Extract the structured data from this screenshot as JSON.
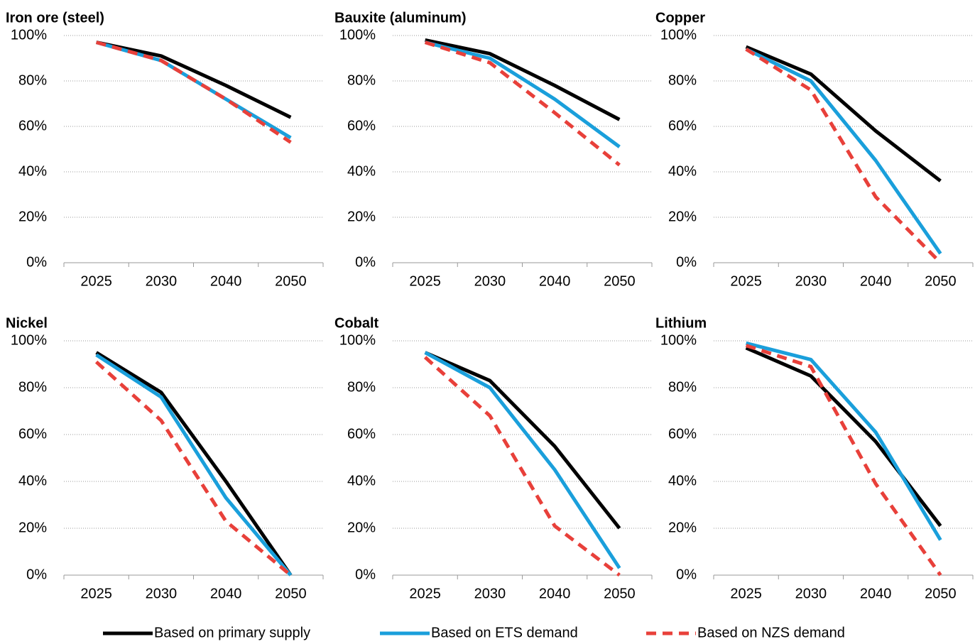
{
  "legend_series": [
    {
      "name": "Based on primary supply",
      "color": "#000000",
      "dash": false
    },
    {
      "name": "Based on ETS demand",
      "color": "#1a9fdb",
      "dash": false
    },
    {
      "name": "Based on NZS demand",
      "color": "#e8403a",
      "dash": true
    }
  ],
  "chart_data": [
    {
      "type": "line",
      "title": "Iron ore (steel)",
      "categories": [
        "2025",
        "2030",
        "2040",
        "2050"
      ],
      "series": [
        {
          "values": [
            97,
            91,
            78,
            64
          ]
        },
        {
          "values": [
            97,
            89,
            72,
            55
          ]
        },
        {
          "values": [
            97,
            89,
            72,
            53
          ]
        }
      ],
      "ylim": [
        0,
        100
      ],
      "yticks": [
        {
          "value": 0,
          "label": "0%"
        },
        {
          "value": 20,
          "label": "20%"
        },
        {
          "value": 40,
          "label": "40%"
        },
        {
          "value": 60,
          "label": "60%"
        },
        {
          "value": 80,
          "label": "80%"
        },
        {
          "value": 100,
          "label": "100%"
        }
      ],
      "grid": true
    },
    {
      "type": "line",
      "title": "Bauxite (aluminum)",
      "categories": [
        "2025",
        "2030",
        "2040",
        "2050"
      ],
      "series": [
        {
          "values": [
            98,
            92,
            78,
            63
          ]
        },
        {
          "values": [
            97,
            90,
            72,
            51
          ]
        },
        {
          "values": [
            97,
            88,
            66,
            43
          ]
        }
      ],
      "ylim": [
        0,
        100
      ],
      "yticks": [
        {
          "value": 0,
          "label": "0%"
        },
        {
          "value": 20,
          "label": "20%"
        },
        {
          "value": 40,
          "label": "40%"
        },
        {
          "value": 60,
          "label": "60%"
        },
        {
          "value": 80,
          "label": "80%"
        },
        {
          "value": 100,
          "label": "100%"
        }
      ],
      "grid": true
    },
    {
      "type": "line",
      "title": "Copper",
      "categories": [
        "2025",
        "2030",
        "2040",
        "2050"
      ],
      "series": [
        {
          "values": [
            95,
            83,
            58,
            36
          ]
        },
        {
          "values": [
            94,
            80,
            45,
            4
          ]
        },
        {
          "values": [
            94,
            76,
            29,
            0
          ]
        }
      ],
      "ylim": [
        0,
        100
      ],
      "yticks": [
        {
          "value": 0,
          "label": "0%"
        },
        {
          "value": 20,
          "label": "20%"
        },
        {
          "value": 40,
          "label": "40%"
        },
        {
          "value": 60,
          "label": "60%"
        },
        {
          "value": 80,
          "label": "80%"
        },
        {
          "value": 100,
          "label": "100%"
        }
      ],
      "grid": true
    },
    {
      "type": "line",
      "title": "Nickel",
      "categories": [
        "2025",
        "2030",
        "2040",
        "2050"
      ],
      "series": [
        {
          "values": [
            95,
            78,
            40,
            0
          ]
        },
        {
          "values": [
            94,
            76,
            33,
            0
          ]
        },
        {
          "values": [
            91,
            66,
            23,
            0
          ]
        }
      ],
      "ylim": [
        0,
        100
      ],
      "yticks": [
        {
          "value": 0,
          "label": "0%"
        },
        {
          "value": 20,
          "label": "20%"
        },
        {
          "value": 40,
          "label": "40%"
        },
        {
          "value": 60,
          "label": "60%"
        },
        {
          "value": 80,
          "label": "80%"
        },
        {
          "value": 100,
          "label": "100%"
        }
      ],
      "grid": true
    },
    {
      "type": "line",
      "title": "Cobalt",
      "categories": [
        "2025",
        "2030",
        "2040",
        "2050"
      ],
      "series": [
        {
          "values": [
            95,
            83,
            55,
            20
          ]
        },
        {
          "values": [
            95,
            80,
            45,
            3
          ]
        },
        {
          "values": [
            93,
            68,
            21,
            0
          ]
        }
      ],
      "ylim": [
        0,
        100
      ],
      "yticks": [
        {
          "value": 0,
          "label": "0%"
        },
        {
          "value": 20,
          "label": "20%"
        },
        {
          "value": 40,
          "label": "40%"
        },
        {
          "value": 60,
          "label": "60%"
        },
        {
          "value": 80,
          "label": "80%"
        },
        {
          "value": 100,
          "label": "100%"
        }
      ],
      "grid": true
    },
    {
      "type": "line",
      "title": "Lithium",
      "categories": [
        "2025",
        "2030",
        "2040",
        "2050"
      ],
      "series": [
        {
          "values": [
            97,
            85,
            57,
            21
          ]
        },
        {
          "values": [
            99,
            92,
            61,
            15
          ]
        },
        {
          "values": [
            98,
            89,
            39,
            0
          ]
        }
      ],
      "ylim": [
        0,
        100
      ],
      "yticks": [
        {
          "value": 0,
          "label": "0%"
        },
        {
          "value": 20,
          "label": "20%"
        },
        {
          "value": 40,
          "label": "40%"
        },
        {
          "value": 60,
          "label": "60%"
        },
        {
          "value": 80,
          "label": "80%"
        },
        {
          "value": 100,
          "label": "100%"
        }
      ],
      "grid": true
    }
  ]
}
